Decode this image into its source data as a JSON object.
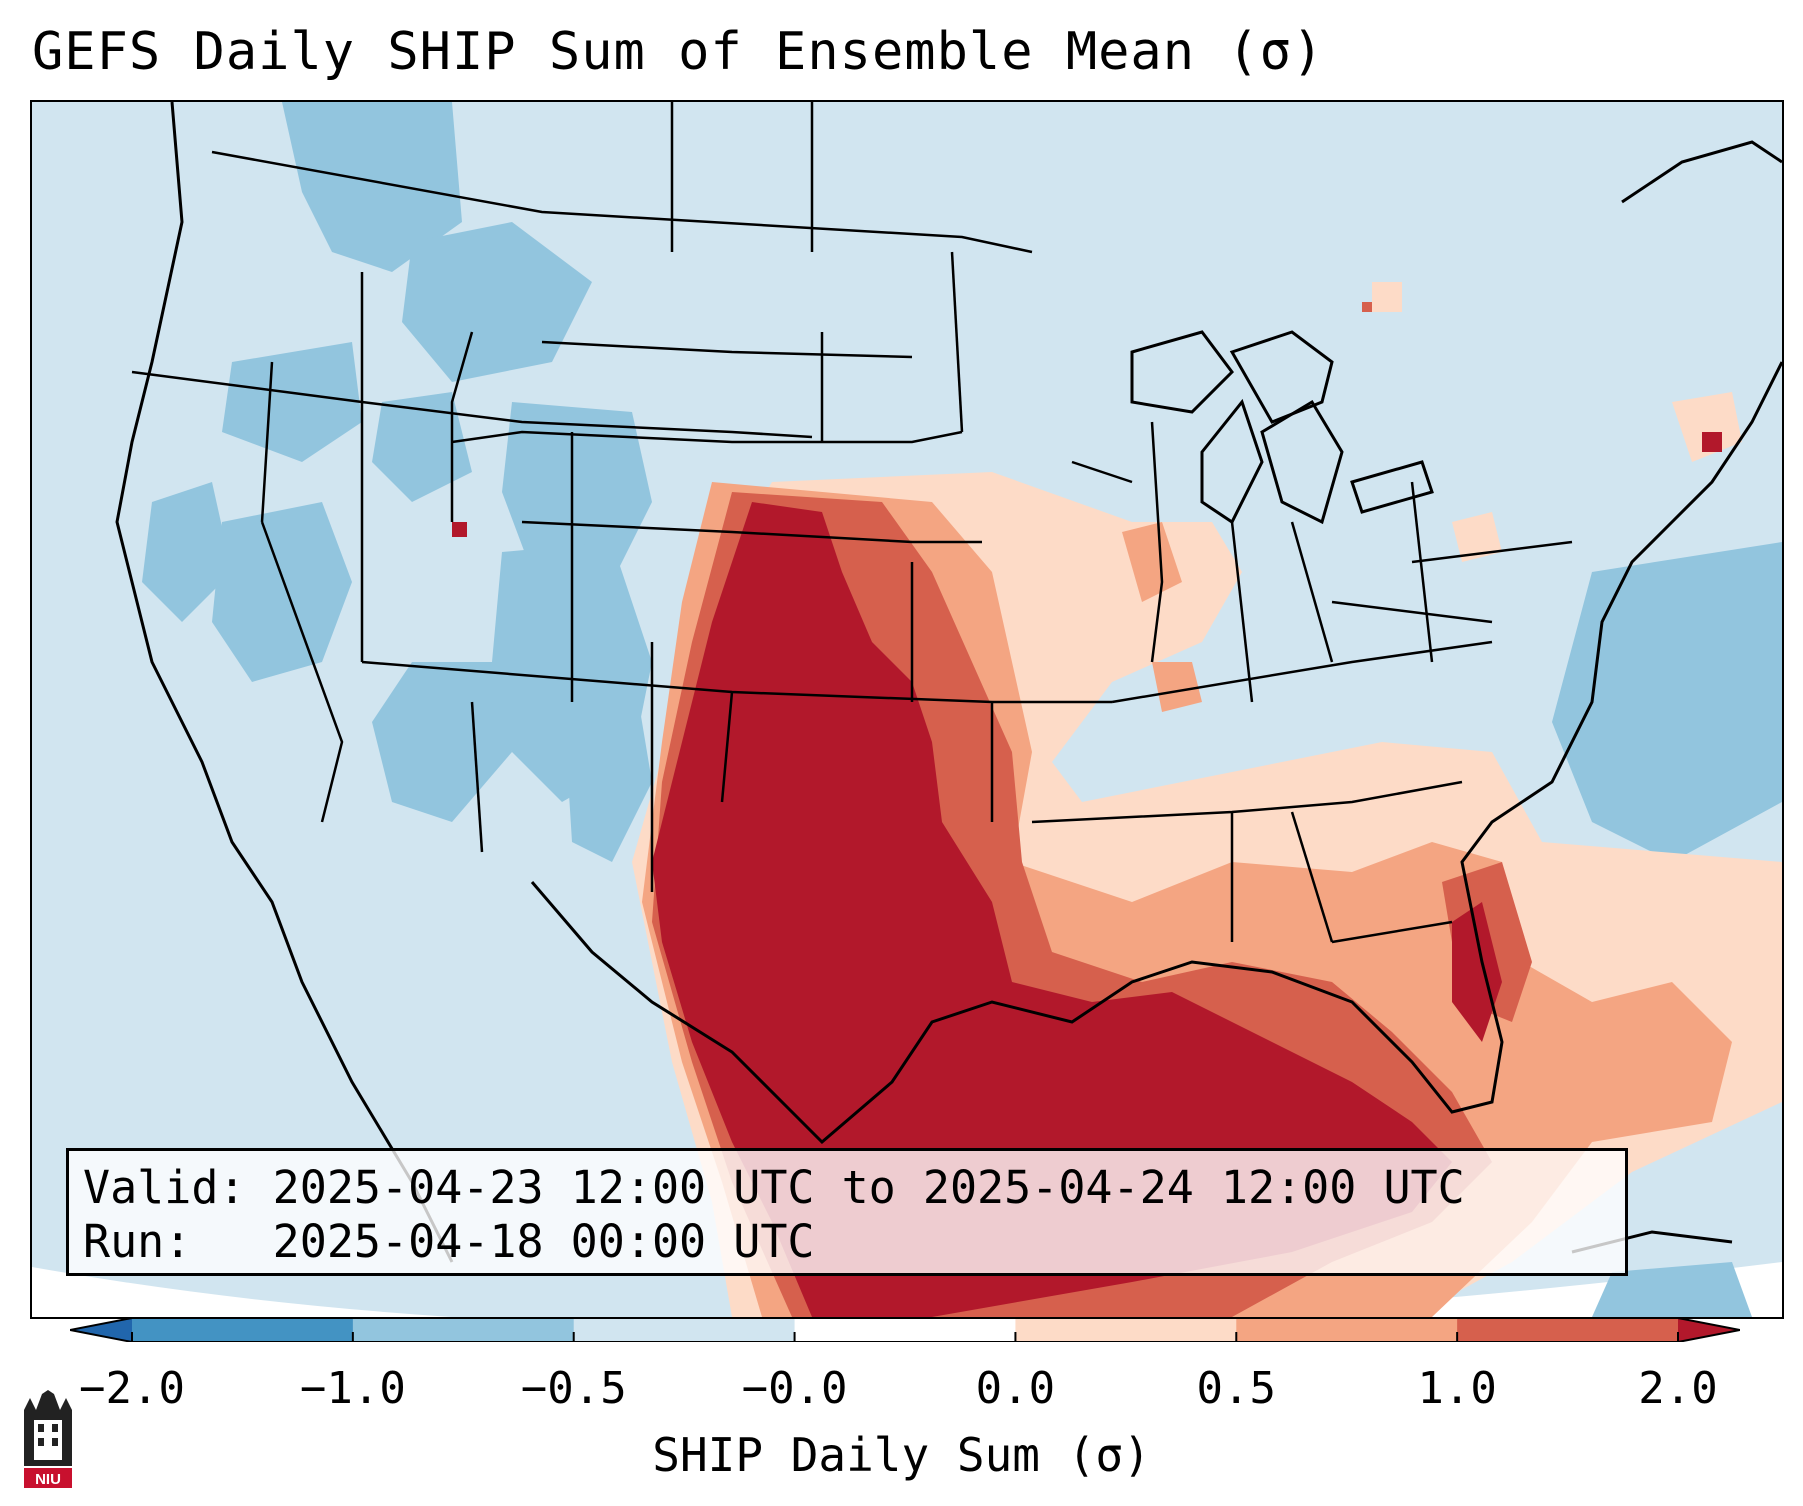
{
  "title": "GEFS Daily SHIP Sum of Ensemble Mean (σ)",
  "info": {
    "valid_label": "Valid:",
    "valid_value": "2025-04-23 12:00 UTC to 2025-04-24 12:00 UTC",
    "run_label": "Run:",
    "run_value": "2025-04-18 00:00 UTC"
  },
  "colorbar": {
    "label": "SHIP Daily Sum (σ)",
    "ticks": [
      "−2.0",
      "−1.0",
      "−0.5",
      "−0.0",
      "0.0",
      "0.5",
      "1.0",
      "2.0"
    ],
    "colors": [
      "#2166ac",
      "#4393c3",
      "#92c5de",
      "#d1e5f0",
      "#ffffff",
      "#fddbc7",
      "#f4a582",
      "#d6604d",
      "#b2182b"
    ],
    "extend": "both"
  },
  "map": {
    "region": "Contiguous United States",
    "ocean_color": "#d1e5f0",
    "outside_color": "#ffffff"
  },
  "logo": {
    "text": "NIU",
    "color": "#c8102e"
  }
}
